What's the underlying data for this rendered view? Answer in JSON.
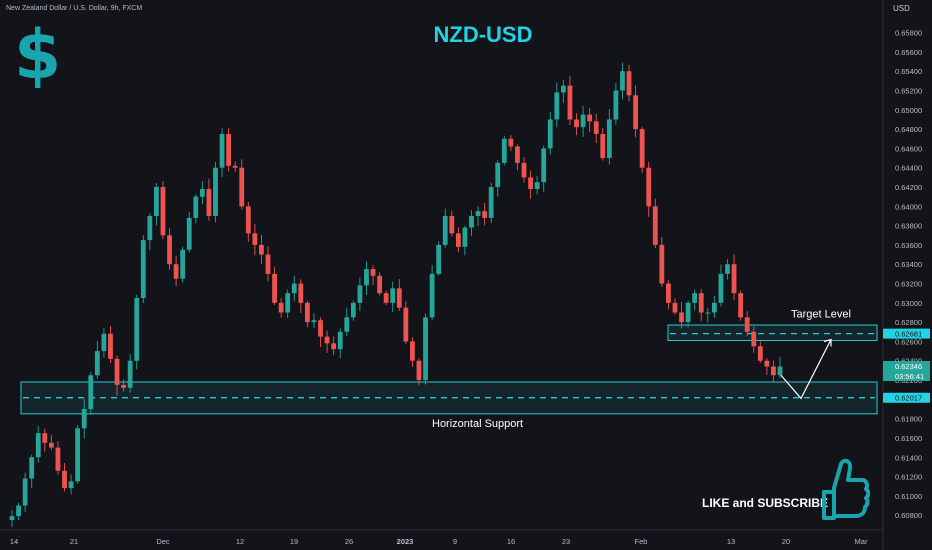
{
  "header": {
    "instrument": "New Zealand Dollar / U.S. Dollar, 9h, FXCM"
  },
  "title": "NZD-USD",
  "currency_icon": "dollar-sign-icon",
  "axis_currency": "USD",
  "cta": {
    "text": "LIKE and SUBSCRIBE",
    "icon": "thumbs-up-icon"
  },
  "colors": {
    "up": "#26a69a",
    "down": "#ef5350",
    "accent": "#22d3e6",
    "zone_border": "#2fc6d8",
    "background": "#121419"
  },
  "chart_data": {
    "type": "candlestick",
    "title": "NZD-USD",
    "y_axis": {
      "label": "USD",
      "ylim": [
        0.6075,
        0.6592
      ],
      "ticks": [
        "0.65800",
        "0.65600",
        "0.65400",
        "0.65200",
        "0.65000",
        "0.64800",
        "0.64600",
        "0.64400",
        "0.64200",
        "0.64000",
        "0.63800",
        "0.63600",
        "0.63400",
        "0.63200",
        "0.63000",
        "0.62800",
        "0.62600",
        "0.62400",
        "0.62200",
        "0.62000",
        "0.61800",
        "0.61600",
        "0.61400",
        "0.61200",
        "0.61000",
        "0.60800"
      ]
    },
    "x_axis": {
      "ticks": [
        "14",
        "21",
        "Dec",
        "12",
        "19",
        "26",
        "2023",
        "9",
        "16",
        "23",
        "Feb",
        "13",
        "20",
        "Mar"
      ]
    },
    "price_labels": {
      "target": "0.62681",
      "current": "0.62346",
      "countdown": "03:56:41",
      "support": "0.62017"
    },
    "annotations": {
      "target": "Target Level",
      "support": "Horizontal Support"
    },
    "zones": [
      {
        "name": "target-zone",
        "low": 0.6261,
        "high": 0.6277,
        "level": 0.62681
      },
      {
        "name": "support-zone",
        "low": 0.6185,
        "high": 0.6218,
        "level": 0.62017
      }
    ],
    "projection": [
      0.6225,
      0.6201,
      0.6262
    ],
    "grid": false,
    "legend": "none",
    "close_path": [
      0.6079,
      0.609,
      0.6118,
      0.614,
      0.6165,
      0.6155,
      0.615,
      0.6126,
      0.6108,
      0.6115,
      0.617,
      0.619,
      0.6225,
      0.625,
      0.6268,
      0.6242,
      0.6215,
      0.6212,
      0.624,
      0.6305,
      0.6365,
      0.639,
      0.642,
      0.637,
      0.634,
      0.6325,
      0.6355,
      0.6388,
      0.641,
      0.6418,
      0.639,
      0.644,
      0.6475,
      0.6442,
      0.644,
      0.64,
      0.6372,
      0.636,
      0.635,
      0.633,
      0.63,
      0.629,
      0.631,
      0.632,
      0.63,
      0.628,
      0.6282,
      0.6265,
      0.6258,
      0.6252,
      0.627,
      0.6285,
      0.63,
      0.6318,
      0.6335,
      0.6328,
      0.631,
      0.63,
      0.6315,
      0.6295,
      0.626,
      0.624,
      0.622,
      0.6285,
      0.633,
      0.636,
      0.639,
      0.6372,
      0.6358,
      0.6378,
      0.639,
      0.6395,
      0.6388,
      0.642,
      0.6445,
      0.647,
      0.6462,
      0.6445,
      0.643,
      0.6418,
      0.6425,
      0.646,
      0.649,
      0.6518,
      0.6525,
      0.649,
      0.6482,
      0.6495,
      0.6488,
      0.6475,
      0.645,
      0.649,
      0.652,
      0.654,
      0.6515,
      0.648,
      0.644,
      0.64,
      0.636,
      0.632,
      0.63,
      0.629,
      0.628,
      0.63,
      0.631,
      0.629,
      0.629,
      0.63,
      0.633,
      0.634,
      0.631,
      0.6285,
      0.627,
      0.6255,
      0.624,
      0.6234,
      0.6225,
      0.6234
    ]
  }
}
